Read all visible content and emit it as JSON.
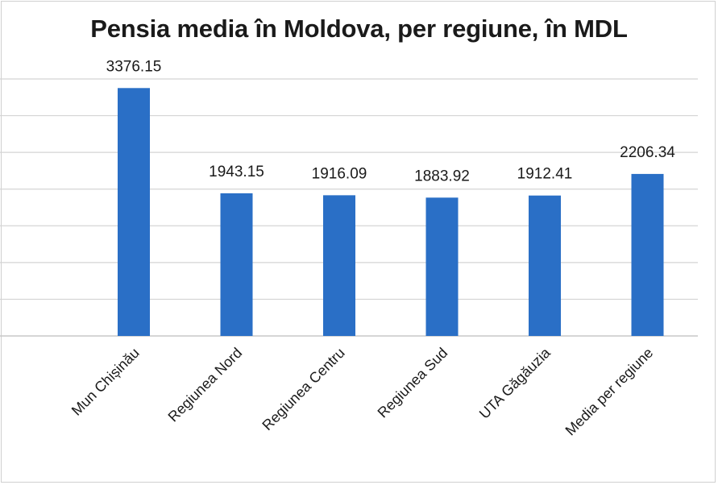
{
  "chart_data": {
    "type": "bar",
    "title": "Pensia media în Moldova, per regiune, în MDL",
    "categories": [
      "Mun Chișinău",
      "Regiunea Nord",
      "Regiunea Centru",
      "Regiunea Sud",
      "UTA Găgăuzia",
      "Media per regiune"
    ],
    "values": [
      3376.15,
      1943.15,
      1916.09,
      1883.92,
      1912.41,
      2206.34
    ],
    "value_labels": [
      "3376.15",
      "1943.15",
      "1916.09",
      "1883.92",
      "1912.41",
      "2206.34"
    ],
    "ylim": [
      0,
      3500
    ],
    "grid": true,
    "bar_color": "#2a6fc6",
    "grid_color": "#d4d4d4"
  }
}
